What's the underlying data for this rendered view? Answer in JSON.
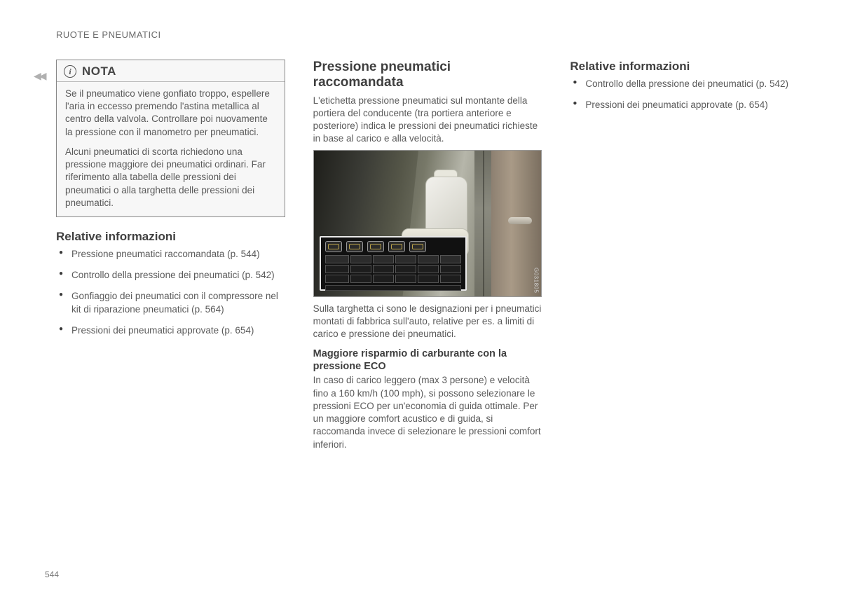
{
  "header": "RUOTE E PNEUMATICI",
  "page_number": "544",
  "image_code": "G031805",
  "col1": {
    "nota_title": "NOTA",
    "nota_p1": "Se il pneumatico viene gonfiato troppo, espellere l'aria in eccesso premendo l'astina metallica al centro della valvola. Controllare poi nuovamente la pressione con il manometro per pneumatici.",
    "nota_p2": "Alcuni pneumatici di scorta richiedono una pressione maggiore dei pneumatici ordinari. Far riferimento alla tabella delle pressioni dei pneumatici o alla targhetta delle pressioni dei pneumatici.",
    "rel_title": "Relative informazioni",
    "items": [
      "Pressione pneumatici raccomandata (p. 544)",
      "Controllo della pressione dei pneumatici (p. 542)",
      "Gonfiaggio dei pneumatici con il compressore nel kit di riparazione pneumatici (p. 564)",
      "Pressioni dei pneumatici approvate (p. 654)"
    ]
  },
  "col2": {
    "title": "Pressione pneumatici raccomandata",
    "intro": "L'etichetta pressione pneumatici sul montante della portiera del conducente (tra portiera anteriore e posteriore) indica le pressioni dei pneumatici richieste in base al carico e alla velocità.",
    "caption": "Sulla targhetta ci sono le designazioni per i pneumatici montati di fabbrica sull'auto, relative per es. a limiti di carico e pressione dei pneumatici.",
    "eco_title": "Maggiore risparmio di carburante con la pressione ECO",
    "eco_body": "In caso di carico leggero (max 3 persone) e velocità fino a 160 km/h (100 mph), si possono selezionare le pressioni ECO per un'economia di guida ottimale. Per un maggiore comfort acustico e di guida, si raccomanda invece di selezionare le pressioni comfort inferiori."
  },
  "col3": {
    "rel_title": "Relative informazioni",
    "items": [
      "Controllo della pressione dei pneumatici (p. 542)",
      "Pressioni dei pneumatici approvate (p. 654)"
    ]
  }
}
